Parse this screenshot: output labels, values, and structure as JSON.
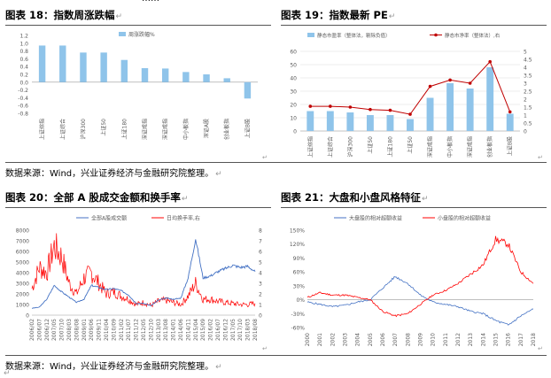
{
  "top_fragment": "……",
  "panels": {
    "p18": {
      "title": "图表 18：指数周涨跌幅"
    },
    "p19": {
      "title": "图表 19：指数最新 PE"
    },
    "p20": {
      "title": "图表 20：全部 A 股成交金额和换手率"
    },
    "p21": {
      "title": "图表 21：大盘和小盘风格特征"
    }
  },
  "source_text_1": "数据来源：Wind，兴业证券经济与金融研究院整理。",
  "source_text_2": "数据来源：Wind，兴业证券经济与金融研究院整理。",
  "paragraph_mark": "↵",
  "colors": {
    "blue_bar": "#8fc4ea",
    "blue_line": "#4472c4",
    "red": "#ff0000",
    "dark_red": "#c00000",
    "grid": "#d9d9d9",
    "axis_text": "#595959"
  },
  "chart_data": [
    {
      "type": "bar",
      "legend": [
        "周涨跌幅%"
      ],
      "categories": [
        "上证综指",
        "上证综合",
        "沪深300",
        "上证50",
        "上证180",
        "深证成指",
        "深证成指",
        "中小板指",
        "深证A股",
        "创业板指",
        "上证B股"
      ],
      "series": [
        {
          "name": "周涨跌幅%",
          "values": [
            0.94,
            0.94,
            0.76,
            0.76,
            0.57,
            0.36,
            0.35,
            0.26,
            0.2,
            0.1,
            -0.42
          ]
        }
      ],
      "ylim": [
        -0.8,
        1.2
      ],
      "yticks": [
        "1.2",
        "1.0",
        "0.8",
        "0.6",
        "0.4",
        "0.2",
        "0.0",
        "-0.2",
        "-0.4",
        "-0.6",
        "-0.8"
      ],
      "grid": false,
      "legend_position": "top"
    },
    {
      "type": "bar",
      "legend": [
        "静态市盈率（整体法，剔除负值）",
        "静态市净率（整体法）,右"
      ],
      "categories": [
        "上证综指",
        "上证综合",
        "沪深300",
        "上证50",
        "上证180",
        "上证50",
        "深证成指",
        "中小板指",
        "深证成指",
        "创业板指",
        "上证B股"
      ],
      "series": [
        {
          "name": "静态市盈率（整体法，剔除负值）",
          "type": "bar",
          "values": [
            15,
            15,
            14,
            12,
            12,
            9,
            25,
            36,
            32,
            48,
            13
          ]
        },
        {
          "name": "静态市净率（整体法）,右",
          "type": "line",
          "values": [
            1.55,
            1.55,
            1.5,
            1.35,
            1.3,
            1.05,
            2.8,
            3.2,
            3.0,
            4.35,
            1.2
          ]
        }
      ],
      "ylim": [
        0,
        60
      ],
      "yticks_left": [
        "60",
        "50",
        "40",
        "30",
        "20",
        "10",
        "0"
      ],
      "ylim_right": [
        0,
        5
      ],
      "yticks_right": [
        "5",
        "4.5",
        "4",
        "3.5",
        "3",
        "2.5",
        "2",
        "1.5",
        "1",
        "0.5",
        "0"
      ],
      "grid": true,
      "legend_position": "top"
    },
    {
      "type": "line",
      "legend": [
        "全部A股成交额",
        "日均换手率,右"
      ],
      "x": [
        "2006/02",
        "2006/07",
        "2006/12",
        "2007/05",
        "2007/10",
        "2008/03",
        "2008/08",
        "2009/01",
        "2009/06",
        "2009/11",
        "2010/04",
        "2010/09",
        "2011/02",
        "2011/07",
        "2011/12",
        "2012/05",
        "2012/10",
        "2013/03",
        "2013/08",
        "2014/01",
        "2014/06",
        "2014/11",
        "2015/04",
        "2015/09",
        "2016/02",
        "2016/07",
        "2016/12",
        "2017/05",
        "2017/10",
        "2018/03",
        "2018/08"
      ],
      "series": [
        {
          "name": "全部A股成交额",
          "values": [
            650,
            750,
            1500,
            2800,
            2200,
            1700,
            1200,
            1500,
            2800,
            2600,
            2400,
            2500,
            2300,
            1900,
            1100,
            1100,
            900,
            1400,
            1600,
            1500,
            1600,
            3500,
            7200,
            3500,
            3700,
            4100,
            4400,
            4700,
            4500,
            4600,
            4100
          ]
        },
        {
          "name": "日均换手率,右",
          "values": [
            2.5,
            4.5,
            4.0,
            6.5,
            5.5,
            3.0,
            2.0,
            3.5,
            4.0,
            3.0,
            2.0,
            2.2,
            1.8,
            1.5,
            1.0,
            1.2,
            0.9,
            1.3,
            1.4,
            1.2,
            1.0,
            1.8,
            3.0,
            1.5,
            1.5,
            1.3,
            1.2,
            1.1,
            1.0,
            1.0,
            1.1
          ]
        }
      ],
      "ylim": [
        0,
        8000
      ],
      "yticks_left": [
        "8000",
        "7000",
        "6000",
        "5000",
        "4000",
        "3000",
        "2000",
        "1000",
        "0"
      ],
      "ylim_right": [
        0,
        8
      ],
      "yticks_right": [
        "8",
        "7",
        "6",
        "5",
        "4",
        "3",
        "2",
        "1",
        "0"
      ],
      "grid": false,
      "legend_position": "top"
    },
    {
      "type": "line",
      "legend": [
        "大盘股的相对超额收益",
        "小盘股的相对超额收益"
      ],
      "x": [
        "2000",
        "2001",
        "2002",
        "2003",
        "2004",
        "2005",
        "2006",
        "2007",
        "2008",
        "2009",
        "2010",
        "2011",
        "2012",
        "2013",
        "2014",
        "2015",
        "2016",
        "2017",
        "2018"
      ],
      "series": [
        {
          "name": "大盘股的相对超额收益",
          "values": [
            -0.05,
            -0.1,
            -0.15,
            -0.12,
            -0.05,
            0.0,
            0.25,
            0.5,
            0.35,
            0.1,
            -0.05,
            -0.1,
            -0.15,
            -0.25,
            -0.3,
            -0.45,
            -0.55,
            -0.35,
            -0.2
          ]
        },
        {
          "name": "小盘股的相对超额收益",
          "values": [
            0.05,
            0.15,
            0.1,
            0.1,
            0.05,
            0.0,
            -0.25,
            -0.35,
            -0.3,
            -0.1,
            0.1,
            0.2,
            0.35,
            0.55,
            0.75,
            1.3,
            1.2,
            0.6,
            0.35
          ]
        }
      ],
      "ylim": [
        -0.6,
        1.5
      ],
      "yticks_left": [
        "150%",
        "120%",
        "90%",
        "60%",
        "30%",
        "0%",
        "-30%",
        "-60%"
      ],
      "grid": false,
      "legend_position": "top"
    }
  ]
}
